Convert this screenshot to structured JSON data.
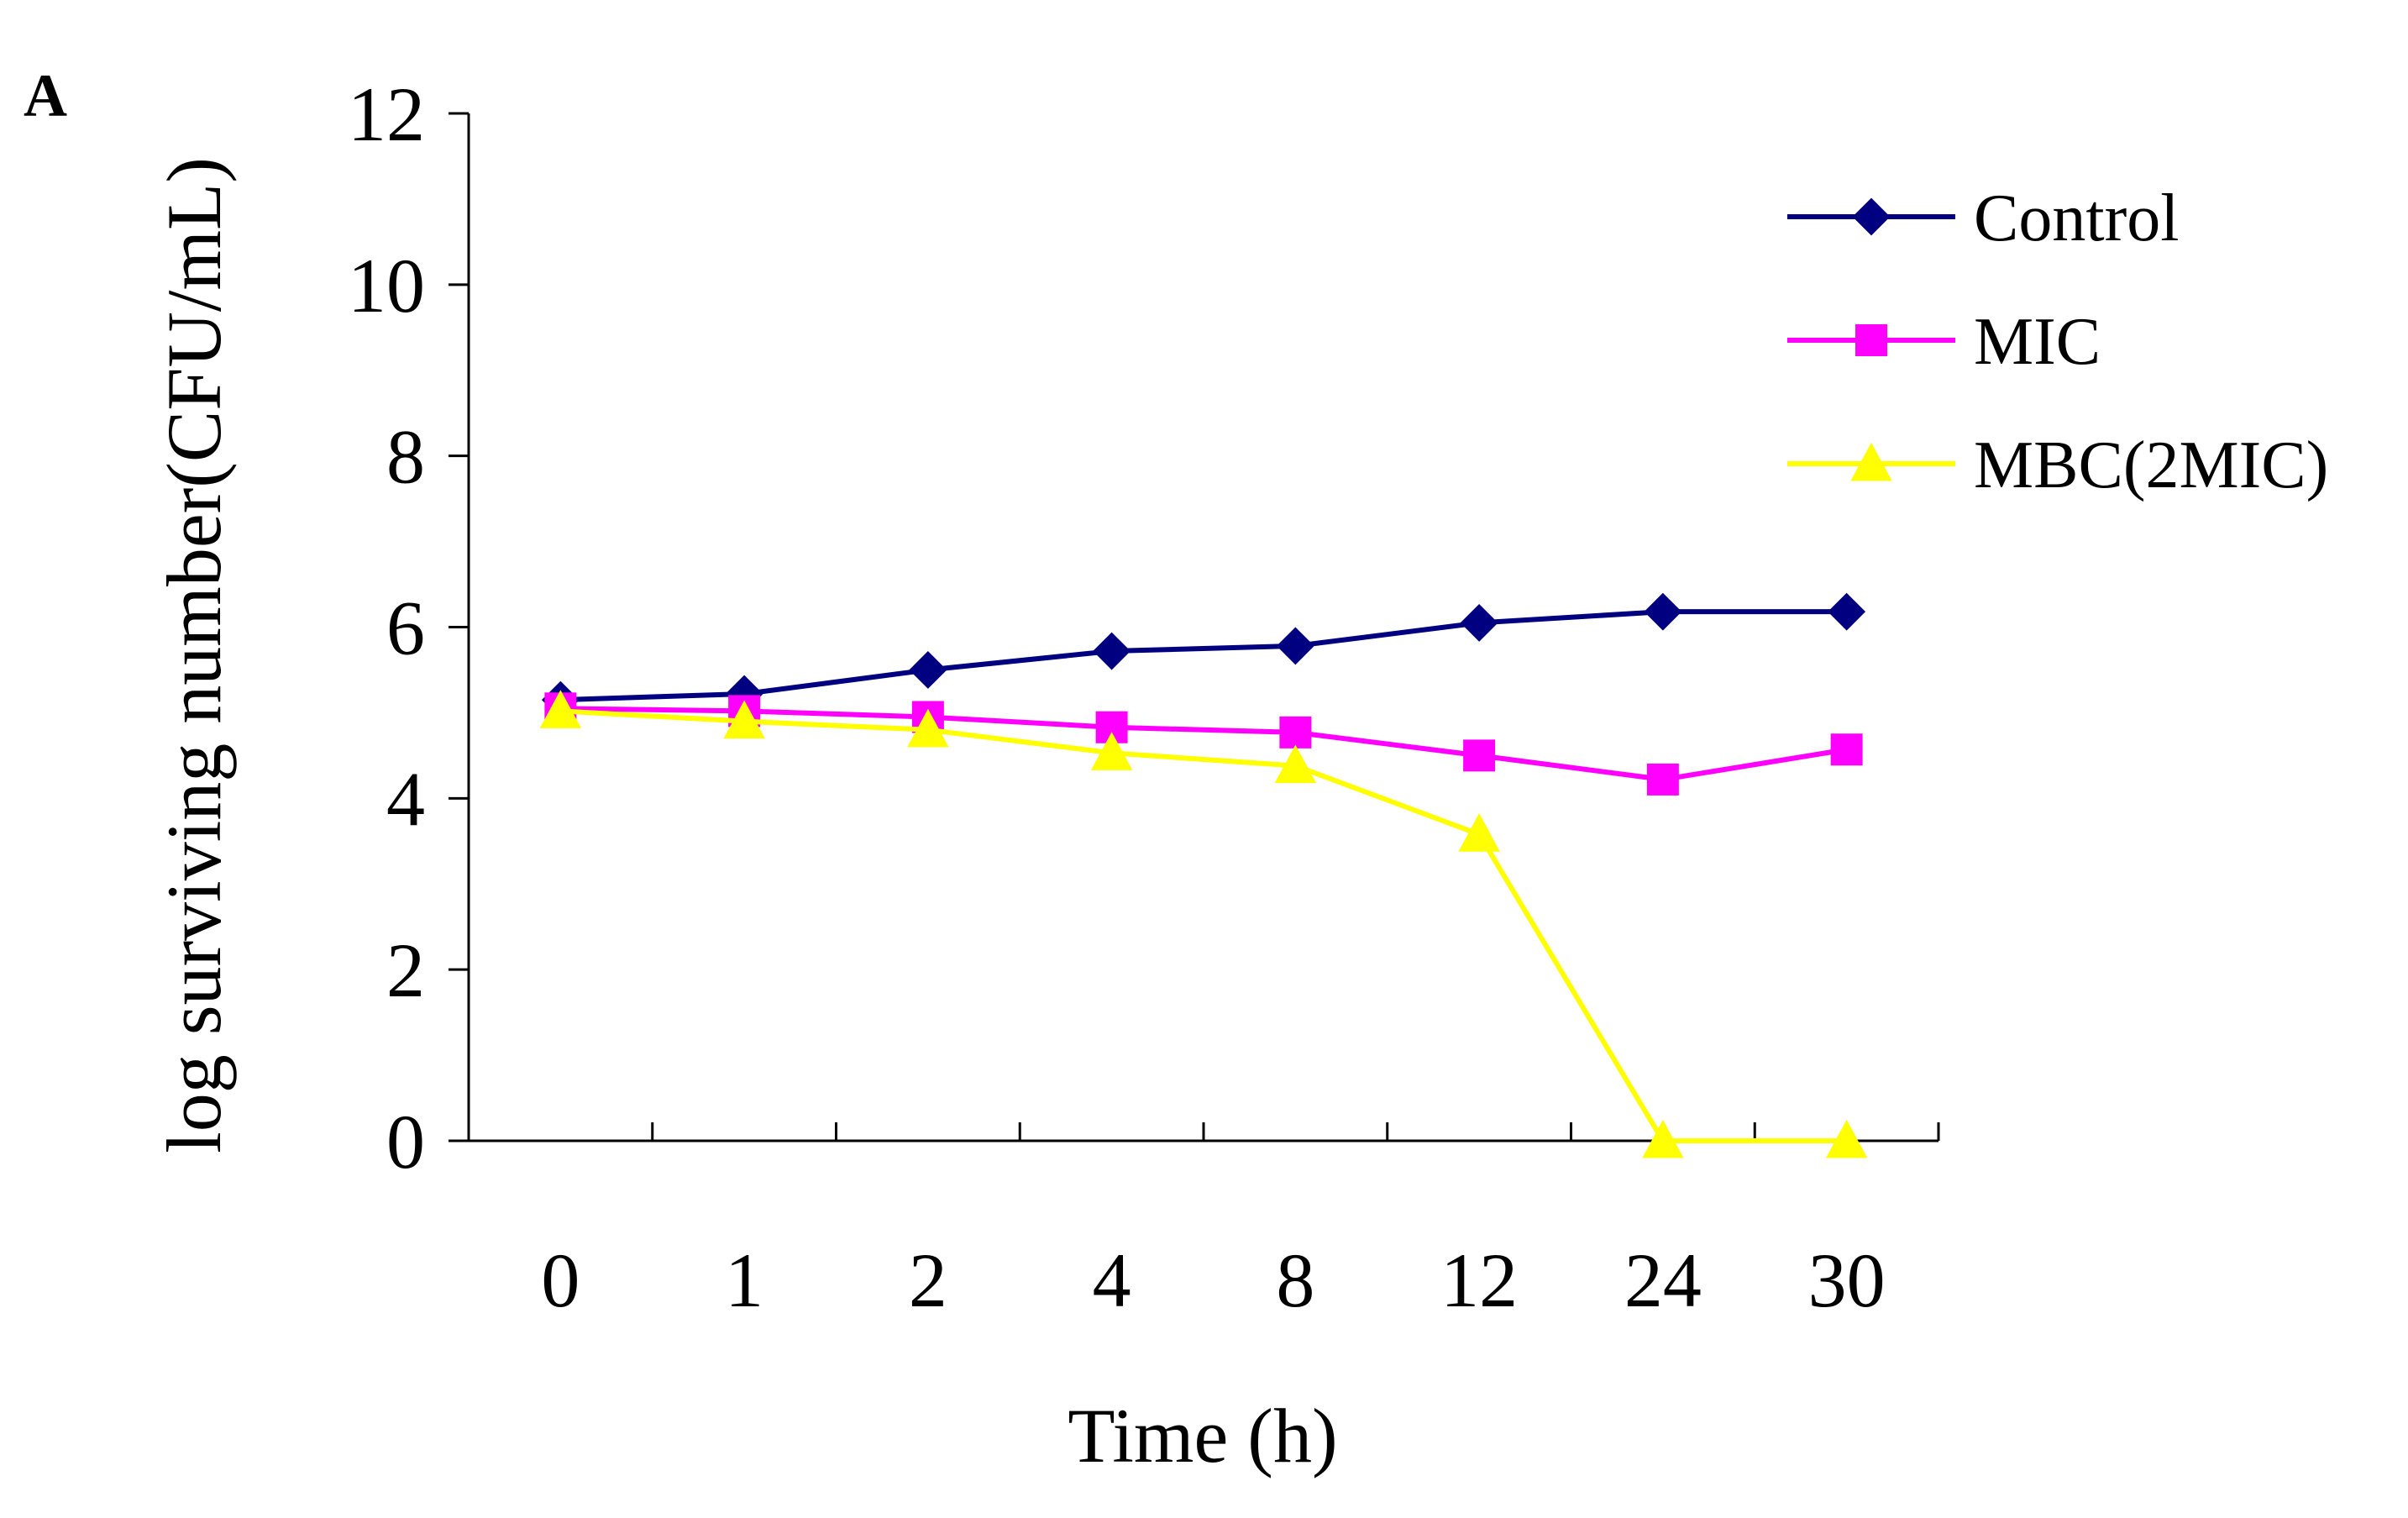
{
  "panel_label": "A",
  "chart_data": {
    "type": "line",
    "title": "",
    "xlabel": "Time (h)",
    "ylabel": "log surviving number(CFU/mL)",
    "categories": [
      "0",
      "1",
      "2",
      "4",
      "8",
      "12",
      "24",
      "30"
    ],
    "ylim": [
      0,
      12
    ],
    "yticks": [
      "0",
      "2",
      "4",
      "6",
      "8",
      "10",
      "12"
    ],
    "legend_position": "top-right",
    "grid": false,
    "series": [
      {
        "name": "Control",
        "color": "#000080",
        "marker": "diamond",
        "values": [
          5.15,
          5.22,
          5.5,
          5.72,
          5.78,
          6.05,
          6.18,
          6.18
        ]
      },
      {
        "name": "MIC",
        "color": "#ff00ff",
        "marker": "square",
        "values": [
          5.05,
          5.02,
          4.95,
          4.83,
          4.77,
          4.5,
          4.22,
          4.57
        ]
      },
      {
        "name": "MBC(2MIC)",
        "color": "#ffff00",
        "marker": "triangle",
        "values": [
          5.02,
          4.9,
          4.8,
          4.53,
          4.38,
          3.58,
          0,
          0
        ]
      }
    ]
  }
}
